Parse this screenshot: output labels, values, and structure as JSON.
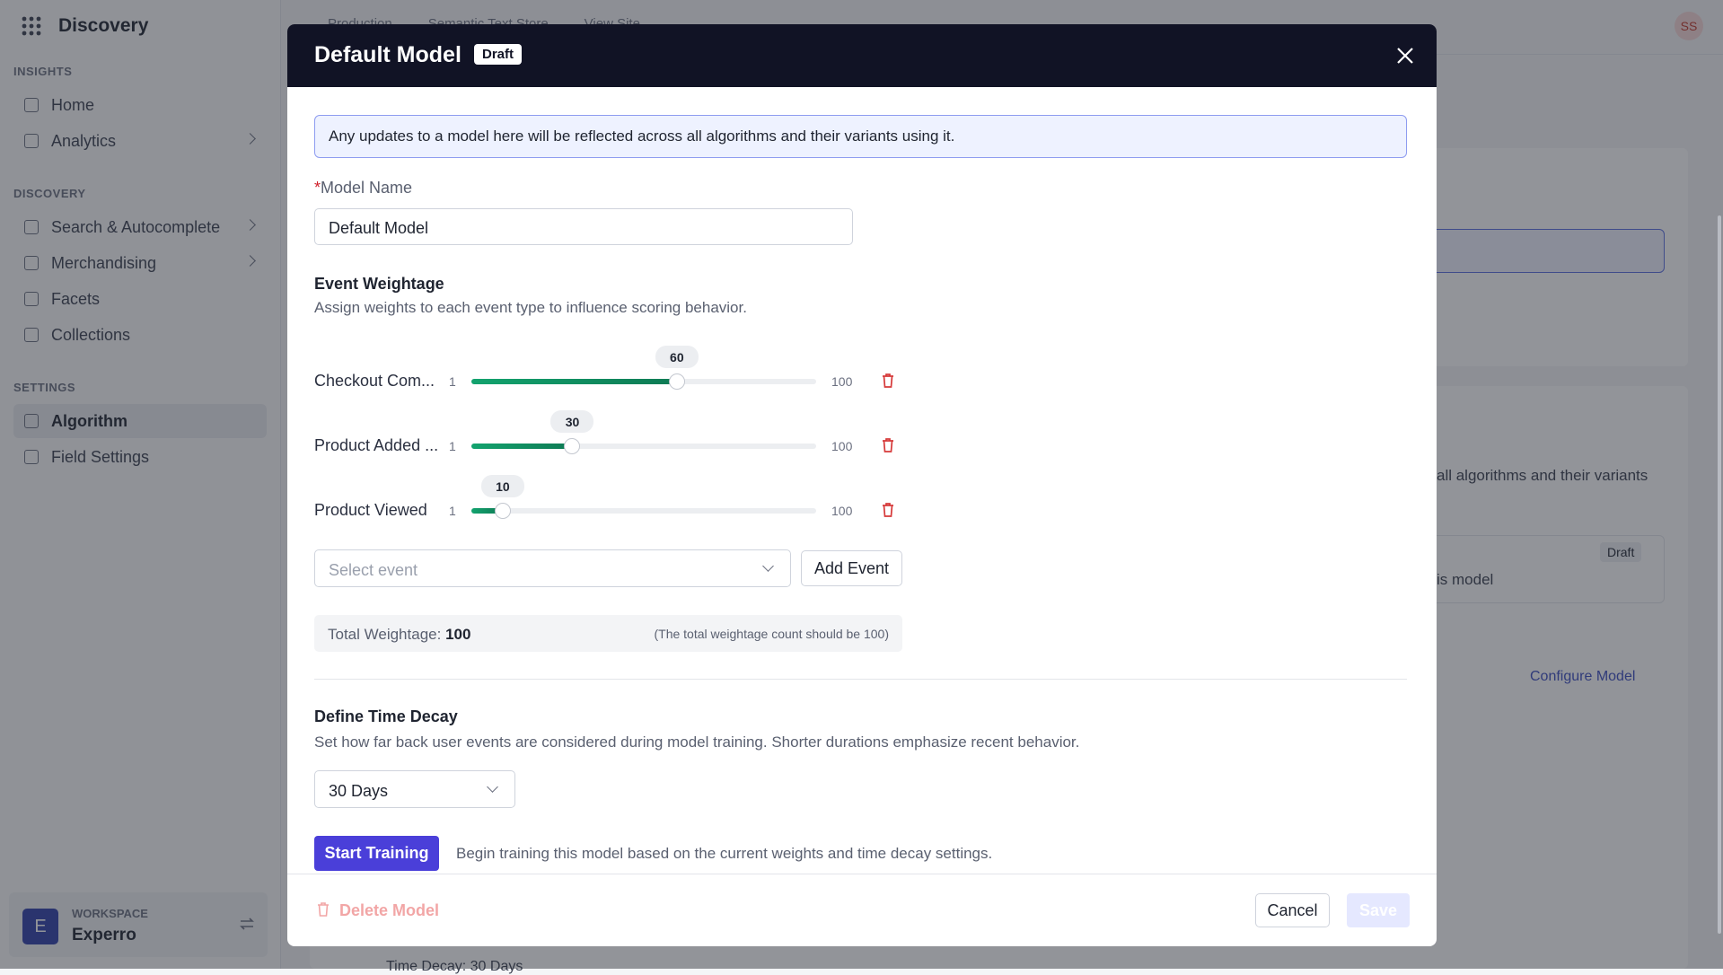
{
  "sidebar": {
    "app": "Discovery",
    "sections": [
      {
        "title": "INSIGHTS",
        "items": [
          "Home",
          "Analytics"
        ]
      },
      {
        "title": "DISCOVERY",
        "items": [
          "Search & Autocomplete",
          "Merchandising",
          "Facets",
          "Collections"
        ]
      },
      {
        "title": "SETTINGS",
        "items": [
          "Algorithm",
          "Field Settings"
        ]
      }
    ],
    "workspace": {
      "initial": "E",
      "label": "WORKSPACE",
      "name": "Experro"
    }
  },
  "background": {
    "breadcrumbs": [
      "Production",
      "Semantic Text Store",
      "View Site"
    ],
    "avatar": "SS",
    "snippet_text": "all algorithms and their variants",
    "badge": "Draft",
    "snippet_model": "is model",
    "configure": "Configure Model",
    "time_decay": "Time Decay: 30 Days"
  },
  "modal": {
    "title": "Default Model",
    "badge": "Draft",
    "info": "Any updates to a model here will be reflected across all algorithms and their variants using it.",
    "name_label": "Model Name",
    "name_value": "Default Model",
    "event_weightage": {
      "title": "Event Weightage",
      "description": "Assign weights to each event type to influence scoring behavior.",
      "min": 1,
      "max": 100,
      "events": [
        {
          "label": "Checkout Com...",
          "value": 60
        },
        {
          "label": "Product Added ...",
          "value": 30
        },
        {
          "label": "Product Viewed",
          "value": 10
        }
      ],
      "select_placeholder": "Select event",
      "add_button": "Add Event",
      "total_label": "Total Weightage:",
      "total_value": 100,
      "total_note": "(The total weightage count should be 100)"
    },
    "time_decay": {
      "title": "Define Time Decay",
      "description": "Set how far back user events are considered during model training. Shorter durations emphasize recent behavior.",
      "selected": "30 Days"
    },
    "training": {
      "button": "Start Training",
      "description": "Begin training this model based on the current weights and time decay settings."
    },
    "footer": {
      "delete": "Delete Model",
      "cancel": "Cancel",
      "save": "Save"
    }
  }
}
